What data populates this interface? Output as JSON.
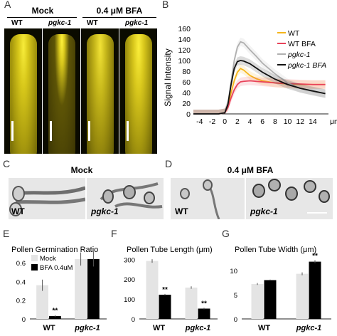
{
  "panels": {
    "A": "A",
    "B": "B",
    "C": "C",
    "D": "D",
    "E": "E",
    "F": "F",
    "G": "G"
  },
  "panel_a": {
    "cond_mock": "Mock",
    "cond_bfa": "0.4 μM BFA",
    "wt": "WT",
    "mutant": "pgkc-1"
  },
  "panel_c": {
    "title": "Mock",
    "wt": "WT",
    "mutant": "pgkc-1"
  },
  "panel_d": {
    "title": "0.4 μM BFA",
    "wt": "WT",
    "mutant": "pgkc-1"
  },
  "colors": {
    "wt": "#f5b51a",
    "wt_bfa": "#e8435a",
    "pgkc1": "#b0b0b0",
    "pgkc1_bfa": "#111111",
    "mock_bar": "#e4e4e4",
    "bfa_bar": "#000000"
  },
  "chart_data": [
    {
      "panel": "B",
      "type": "line",
      "ylabel": "Signal Intensity",
      "xunit": "μm",
      "xticks": [
        -4,
        -2,
        0,
        2,
        4,
        6,
        8,
        10,
        12,
        14
      ],
      "yticks": [
        0,
        20,
        40,
        60,
        80,
        100,
        120,
        140,
        160
      ],
      "xlim": [
        -5,
        16.5
      ],
      "ylim": [
        0,
        160
      ],
      "legend_position": "top-right",
      "series": [
        {
          "name": "WT",
          "color": "#f5b51a",
          "italic": false,
          "x": [
            -5,
            -1,
            0,
            0.5,
            1,
            1.5,
            2,
            2.5,
            3,
            4,
            5,
            6,
            8,
            10,
            12,
            14,
            16
          ],
          "y": [
            0,
            0,
            2,
            15,
            40,
            62,
            78,
            85,
            82,
            72,
            66,
            62,
            58,
            56,
            55,
            55,
            55
          ]
        },
        {
          "name": "WT BFA",
          "color": "#e8435a",
          "italic": false,
          "x": [
            -5,
            -1,
            0,
            0.5,
            1,
            1.5,
            2,
            2.5,
            3,
            4,
            5,
            6,
            8,
            10,
            12,
            14,
            16
          ],
          "y": [
            0,
            0,
            2,
            12,
            30,
            45,
            55,
            60,
            61,
            62,
            61,
            60,
            58,
            57,
            56,
            55,
            55
          ]
        },
        {
          "name": "pgkc-1",
          "color": "#b0b0b0",
          "italic": true,
          "x": [
            -5,
            -1,
            0,
            0.5,
            1,
            1.5,
            2,
            2.5,
            3,
            4,
            5,
            6,
            8,
            10,
            12,
            14,
            16
          ],
          "y": [
            0,
            0,
            2,
            20,
            60,
            100,
            125,
            135,
            133,
            120,
            108,
            95,
            75,
            58,
            48,
            42,
            38
          ]
        },
        {
          "name": "pgkc-1 BFA",
          "color": "#111111",
          "italic": true,
          "x": [
            -5,
            -1,
            0,
            0.5,
            1,
            1.5,
            2,
            2.5,
            3,
            4,
            5,
            6,
            8,
            10,
            12,
            14,
            16
          ],
          "y": [
            0,
            0,
            2,
            18,
            55,
            85,
            98,
            100,
            99,
            94,
            86,
            78,
            65,
            55,
            48,
            43,
            38
          ]
        }
      ]
    },
    {
      "panel": "E",
      "type": "bar",
      "title": "Pollen Germination Ratio",
      "categories": [
        "WT",
        "pgkc-1"
      ],
      "yticks": [
        0,
        0.2,
        0.4,
        0.6
      ],
      "ylim": [
        0,
        0.7
      ],
      "legend": [
        "Mock",
        "BFA 0.4uM"
      ],
      "series": [
        {
          "name": "Mock",
          "values": [
            0.36,
            0.64
          ],
          "errors": [
            0.06,
            0.07
          ]
        },
        {
          "name": "BFA 0.4uM",
          "values": [
            0.03,
            0.64
          ],
          "errors": [
            0.01,
            0.08
          ]
        }
      ],
      "significance": [
        {
          "category": "WT",
          "series": "BFA 0.4uM",
          "label": "**"
        }
      ]
    },
    {
      "panel": "F",
      "type": "bar",
      "title": "Pollen Tube Length (μm)",
      "categories": [
        "WT",
        "pgkc-1"
      ],
      "yticks": [
        0,
        100,
        200,
        300
      ],
      "ylim": [
        0,
        330
      ],
      "series": [
        {
          "name": "Mock",
          "values": [
            292,
            158
          ],
          "errors": [
            9,
            6
          ]
        },
        {
          "name": "BFA 0.4uM",
          "values": [
            122,
            52
          ],
          "errors": [
            4,
            4
          ]
        }
      ],
      "significance": [
        {
          "category": "WT",
          "series": "BFA 0.4uM",
          "label": "**"
        },
        {
          "category": "pgkc-1",
          "series": "BFA 0.4uM",
          "label": "**"
        }
      ]
    },
    {
      "panel": "G",
      "type": "bar",
      "title": "Pollen Tube Width (μm)",
      "categories": [
        "WT",
        "pgkc-1"
      ],
      "yticks": [
        0,
        5,
        10
      ],
      "ylim": [
        0,
        13.5
      ],
      "series": [
        {
          "name": "Mock",
          "values": [
            7.2,
            9.3
          ],
          "errors": [
            0.2,
            0.3
          ]
        },
        {
          "name": "BFA 0.4uM",
          "values": [
            8.0,
            11.8
          ],
          "errors": [
            0.1,
            0.3
          ]
        }
      ],
      "significance": [
        {
          "category": "pgkc-1",
          "series": "BFA 0.4uM",
          "label": "**"
        }
      ]
    }
  ]
}
